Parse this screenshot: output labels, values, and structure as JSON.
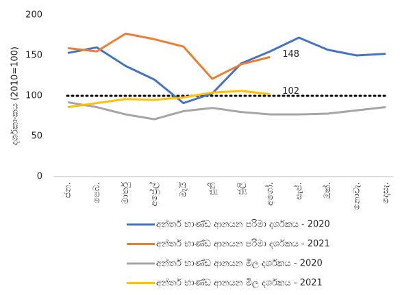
{
  "chart_data": {
    "type": "line",
    "y_label": "දර්ශකාංකය (2010=100)",
    "categories": [
      "ජන.",
      "පෙබ.",
      "මාර්තු",
      "අප්‍රේල්",
      "මැයි",
      "ජූනි",
      "ජූලි",
      "අගෝ.",
      "සැප්.",
      "ඔක්.",
      "නොවැ.",
      "දෙසැ."
    ],
    "series": [
      {
        "name": "අන්තර් භාණ්ඩ ආනයන පරිමා දර්ශකය - 2020",
        "color": "#4472c4",
        "values": [
          153,
          160,
          137,
          120,
          91,
          103,
          140,
          155,
          172,
          157,
          150,
          152
        ]
      },
      {
        "name": "අන්තර් භාණ්ඩ ආනයන පරිමා දර්ශකය - 2021",
        "color": "#ed7d31",
        "values": [
          159,
          155,
          177,
          170,
          161,
          121,
          139,
          148,
          null,
          null,
          null,
          null
        ],
        "value_labels": [
          null,
          null,
          null,
          null,
          null,
          null,
          null,
          "148",
          null,
          null,
          null,
          null
        ]
      },
      {
        "name": "අන්තර් භාණ්ඩ ආනයන මිල දර්ශකය - 2020",
        "color": "#a5a5a5",
        "values": [
          92,
          86,
          77,
          71,
          81,
          85,
          80,
          77,
          77,
          78,
          82,
          86
        ]
      },
      {
        "name": "අන්තර් භාණ්ඩ ආනයන මිල දර්ශකය - 2021",
        "color": "#ffc000",
        "values": [
          86,
          91,
          96,
          95,
          98,
          104,
          106,
          102,
          null,
          null,
          null,
          null
        ],
        "value_labels": [
          null,
          null,
          null,
          null,
          null,
          null,
          null,
          "102",
          null,
          null,
          null,
          null
        ]
      }
    ],
    "reference_line": 100,
    "ylim": [
      0,
      200
    ],
    "yticks": [
      0,
      50,
      100,
      150,
      200
    ],
    "grid": false,
    "legend": "bottom"
  }
}
